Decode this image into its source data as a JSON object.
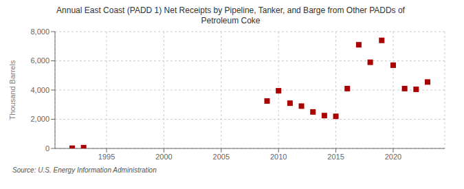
{
  "chart_data": {
    "type": "scatter",
    "title": "Annual East Coast (PADD 1) Net Receipts by Pipeline, Tanker, and Barge from Other PADDs of\nPetroleum Coke",
    "ylabel": "Thousand Barrels",
    "annotations": [
      "Source: U.S. Energy Information Administration"
    ],
    "x": [
      1992,
      1993,
      2009,
      2010,
      2011,
      2012,
      2013,
      2014,
      2015,
      2016,
      2017,
      2018,
      2019,
      2020,
      2021,
      2022,
      2023
    ],
    "values": [
      15,
      55,
      3250,
      3950,
      3100,
      2900,
      2500,
      2250,
      2200,
      4100,
      7100,
      5900,
      7400,
      5700,
      4100,
      4050,
      4550
    ],
    "color": "#aa0000",
    "marker": "square",
    "xlim": [
      1990.5,
      2024.5
    ],
    "xticks": [
      1995,
      2000,
      2005,
      2010,
      2015,
      2020
    ],
    "ylim": [
      0,
      8000
    ],
    "yticks": [
      0,
      {
        "value": 2000,
        "label": "2,000"
      },
      {
        "value": 4000,
        "label": "4,000"
      },
      {
        "value": 6000,
        "label": "6,000"
      },
      {
        "value": 8000,
        "label": "8,000"
      }
    ],
    "grid": true
  }
}
